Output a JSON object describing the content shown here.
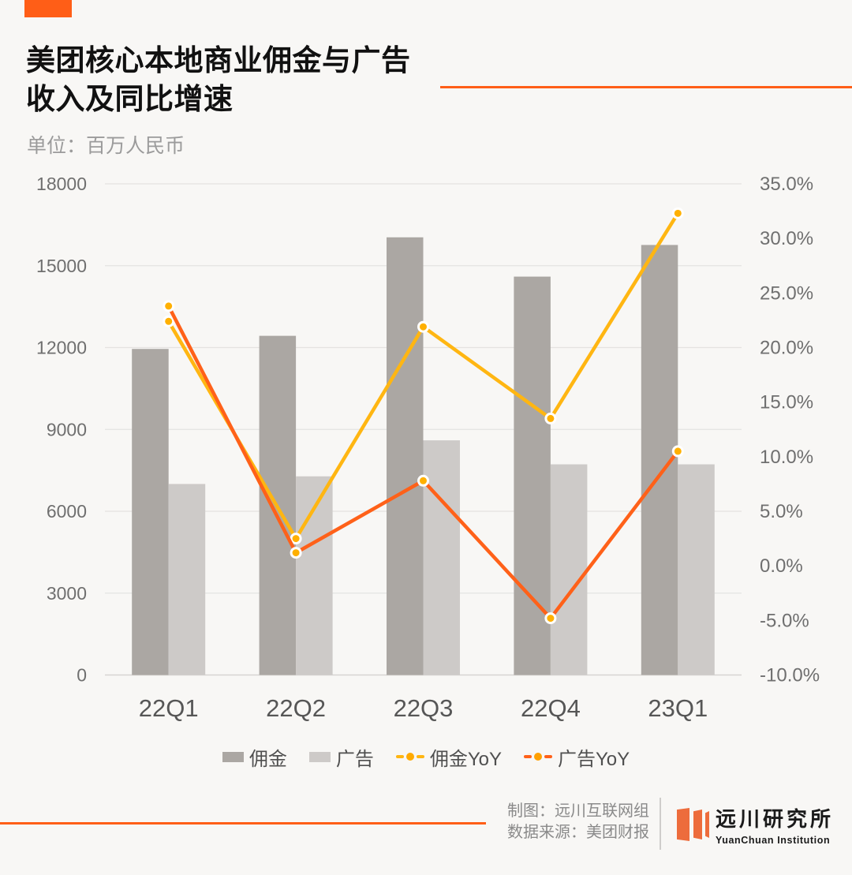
{
  "header": {
    "title_line1": "美团核心本地商业佣金与广告",
    "title_line2": "收入及同比增速",
    "subtitle": "单位：百万人民币"
  },
  "chart_data": {
    "type": "bar",
    "subtype": "combo-bar-line-dual-axis",
    "categories": [
      "22Q1",
      "22Q2",
      "22Q3",
      "22Q4",
      "23Q1"
    ],
    "bar_series": [
      {
        "name": "佣金",
        "color": "#aba7a3",
        "values": [
          11950,
          12430,
          16040,
          14600,
          15760
        ]
      },
      {
        "name": "广告",
        "color": "#cdcac8",
        "values": [
          7000,
          7280,
          8600,
          7720,
          7720
        ]
      }
    ],
    "line_series": [
      {
        "name": "佣金YoY",
        "color": "#ffb612",
        "values": [
          22.4,
          2.5,
          21.9,
          13.5,
          32.3
        ]
      },
      {
        "name": "广告YoY",
        "color": "#ff6119",
        "values": [
          23.8,
          1.2,
          7.8,
          -4.8,
          10.5
        ]
      }
    ],
    "left_axis": {
      "min": 0,
      "max": 18000,
      "ticks": [
        "18000",
        "15000",
        "12000",
        "9000",
        "6000",
        "3000",
        "0"
      ]
    },
    "right_axis": {
      "min": -10,
      "max": 35,
      "ticks": [
        "35.0%",
        "30.0%",
        "25.0%",
        "20.0%",
        "15.0%",
        "10.0%",
        "5.0%",
        "0.0%",
        "-5.0%",
        "-10.0%"
      ]
    },
    "marker": {
      "fill": "#ffb000",
      "ring": "#ffffff"
    },
    "grid": true,
    "gridline_color": "#e4e3e1",
    "axisline_color": "#d6d4d2",
    "tick_label_color": "#6f6f6f",
    "category_label_color": "#565656",
    "legend_position": "bottom"
  },
  "legend": {
    "items": [
      {
        "label": "佣金",
        "type": "bar",
        "color": "#aba7a3"
      },
      {
        "label": "广告",
        "type": "bar",
        "color": "#cdcac8"
      },
      {
        "label": "佣金YoY",
        "type": "line",
        "color": "#ffb612",
        "dot_color": "#ffaa00"
      },
      {
        "label": "广告YoY",
        "type": "line",
        "color": "#ff6119",
        "dot_color": "#ffa000"
      }
    ]
  },
  "footer": {
    "credit_line1": "制图：远川互联网组",
    "credit_line2": "数据来源：美团财报",
    "logo_cn": "远川研究所",
    "logo_en": "YuanChuan Institution"
  },
  "colors": {
    "accent": "#ff5e17",
    "background": "#f8f7f5",
    "logo_orange": "#ed6c3c"
  }
}
